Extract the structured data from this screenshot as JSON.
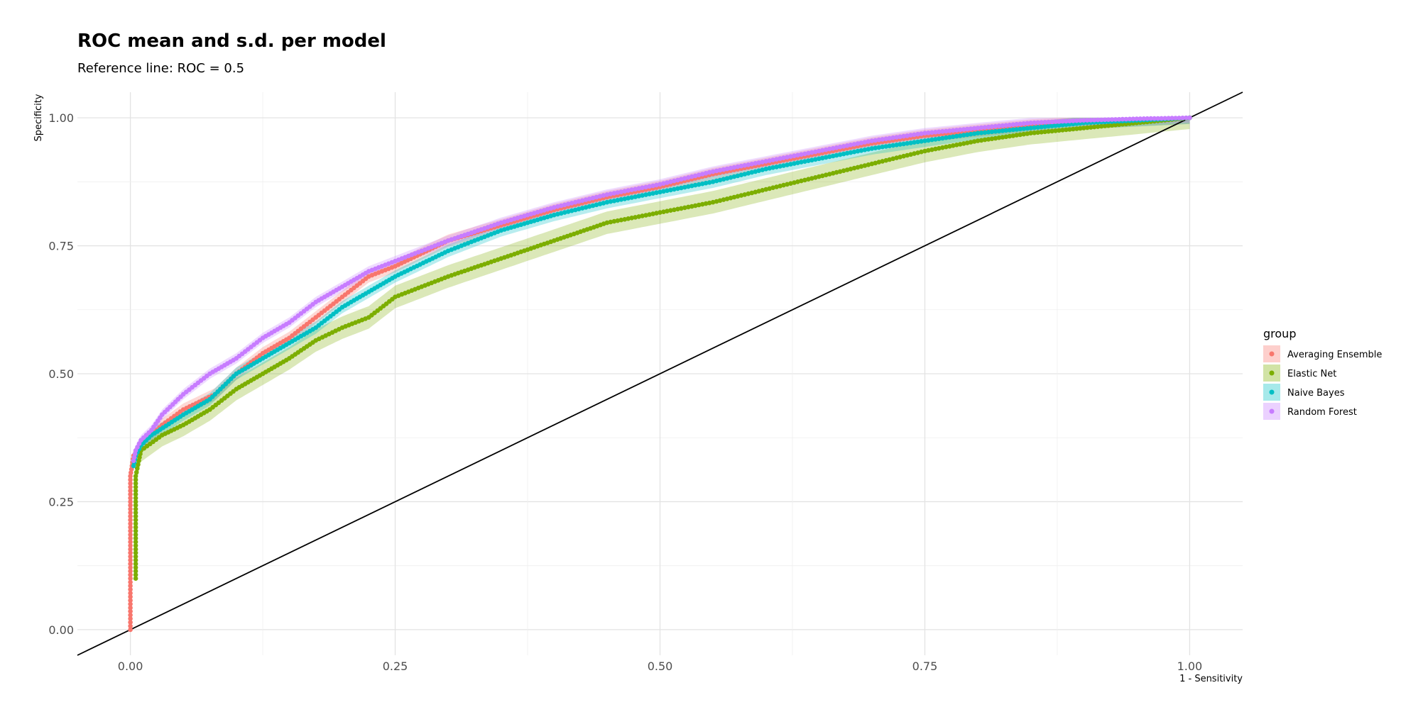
{
  "chart_data": {
    "type": "scatter",
    "title": "ROC mean and s.d. per model",
    "subtitle": "Reference line: ROC = 0.5",
    "xlabel": "1 - Sensitivity",
    "ylabel": "Specificity",
    "xlim": [
      -0.05,
      1.05
    ],
    "ylim": [
      -0.05,
      1.05
    ],
    "x_ticks": [
      "0.00",
      "0.25",
      "0.50",
      "0.75",
      "1.00"
    ],
    "y_ticks": [
      "0.00",
      "0.25",
      "0.50",
      "0.75",
      "1.00"
    ],
    "grid": true,
    "legend_position": "right",
    "legend_title": "group",
    "reference_line": {
      "slope": 1,
      "intercept": 0
    },
    "series": [
      {
        "name": "Averaging Ensemble",
        "color": "#F8766D",
        "sd": 0.012,
        "points": [
          [
            0,
            0
          ],
          [
            0,
            0.1
          ],
          [
            0,
            0.2
          ],
          [
            0,
            0.3
          ],
          [
            0.003,
            0.34
          ],
          [
            0.01,
            0.36
          ],
          [
            0.02,
            0.38
          ],
          [
            0.03,
            0.4
          ],
          [
            0.05,
            0.43
          ],
          [
            0.08,
            0.46
          ],
          [
            0.1,
            0.5
          ],
          [
            0.125,
            0.54
          ],
          [
            0.15,
            0.57
          ],
          [
            0.175,
            0.61
          ],
          [
            0.2,
            0.65
          ],
          [
            0.225,
            0.69
          ],
          [
            0.25,
            0.71
          ],
          [
            0.3,
            0.76
          ],
          [
            0.35,
            0.79
          ],
          [
            0.4,
            0.82
          ],
          [
            0.45,
            0.845
          ],
          [
            0.5,
            0.865
          ],
          [
            0.55,
            0.89
          ],
          [
            0.6,
            0.91
          ],
          [
            0.65,
            0.93
          ],
          [
            0.7,
            0.95
          ],
          [
            0.75,
            0.965
          ],
          [
            0.8,
            0.975
          ],
          [
            0.85,
            0.985
          ],
          [
            0.9,
            0.99
          ],
          [
            0.95,
            0.995
          ],
          [
            1.0,
            1.0
          ]
        ]
      },
      {
        "name": "Elastic Net",
        "color": "#7CAE00",
        "sd": 0.022,
        "points": [
          [
            0.005,
            0.1
          ],
          [
            0.005,
            0.2
          ],
          [
            0.005,
            0.3
          ],
          [
            0.008,
            0.33
          ],
          [
            0.01,
            0.35
          ],
          [
            0.03,
            0.38
          ],
          [
            0.05,
            0.4
          ],
          [
            0.075,
            0.43
          ],
          [
            0.1,
            0.47
          ],
          [
            0.125,
            0.5
          ],
          [
            0.15,
            0.53
          ],
          [
            0.175,
            0.565
          ],
          [
            0.2,
            0.59
          ],
          [
            0.225,
            0.61
          ],
          [
            0.25,
            0.65
          ],
          [
            0.3,
            0.69
          ],
          [
            0.35,
            0.725
          ],
          [
            0.4,
            0.76
          ],
          [
            0.45,
            0.795
          ],
          [
            0.5,
            0.815
          ],
          [
            0.55,
            0.835
          ],
          [
            0.6,
            0.86
          ],
          [
            0.65,
            0.885
          ],
          [
            0.7,
            0.91
          ],
          [
            0.75,
            0.935
          ],
          [
            0.8,
            0.955
          ],
          [
            0.85,
            0.97
          ],
          [
            0.9,
            0.98
          ],
          [
            0.95,
            0.99
          ],
          [
            1.0,
            1.0
          ]
        ]
      },
      {
        "name": "Naive Bayes",
        "color": "#00BFC4",
        "sd": 0.012,
        "points": [
          [
            0.003,
            0.32
          ],
          [
            0.005,
            0.34
          ],
          [
            0.01,
            0.36
          ],
          [
            0.02,
            0.38
          ],
          [
            0.05,
            0.42
          ],
          [
            0.075,
            0.45
          ],
          [
            0.1,
            0.5
          ],
          [
            0.125,
            0.53
          ],
          [
            0.15,
            0.56
          ],
          [
            0.175,
            0.59
          ],
          [
            0.2,
            0.63
          ],
          [
            0.225,
            0.66
          ],
          [
            0.25,
            0.69
          ],
          [
            0.3,
            0.74
          ],
          [
            0.35,
            0.78
          ],
          [
            0.4,
            0.81
          ],
          [
            0.45,
            0.835
          ],
          [
            0.5,
            0.855
          ],
          [
            0.55,
            0.875
          ],
          [
            0.6,
            0.9
          ],
          [
            0.65,
            0.92
          ],
          [
            0.7,
            0.94
          ],
          [
            0.75,
            0.955
          ],
          [
            0.8,
            0.97
          ],
          [
            0.85,
            0.98
          ],
          [
            0.9,
            0.99
          ],
          [
            0.95,
            0.995
          ],
          [
            1.0,
            1.0
          ]
        ]
      },
      {
        "name": "Random Forest",
        "color": "#C77CFF",
        "sd": 0.01,
        "points": [
          [
            0.003,
            0.33
          ],
          [
            0.005,
            0.35
          ],
          [
            0.01,
            0.37
          ],
          [
            0.02,
            0.39
          ],
          [
            0.03,
            0.42
          ],
          [
            0.05,
            0.46
          ],
          [
            0.075,
            0.5
          ],
          [
            0.1,
            0.53
          ],
          [
            0.125,
            0.57
          ],
          [
            0.15,
            0.6
          ],
          [
            0.175,
            0.64
          ],
          [
            0.2,
            0.67
          ],
          [
            0.225,
            0.7
          ],
          [
            0.25,
            0.72
          ],
          [
            0.3,
            0.76
          ],
          [
            0.35,
            0.795
          ],
          [
            0.4,
            0.825
          ],
          [
            0.45,
            0.85
          ],
          [
            0.5,
            0.87
          ],
          [
            0.55,
            0.895
          ],
          [
            0.6,
            0.915
          ],
          [
            0.65,
            0.935
          ],
          [
            0.7,
            0.955
          ],
          [
            0.75,
            0.97
          ],
          [
            0.8,
            0.98
          ],
          [
            0.85,
            0.99
          ],
          [
            0.9,
            0.995
          ],
          [
            0.95,
            0.998
          ],
          [
            1.0,
            1.0
          ]
        ]
      }
    ]
  }
}
